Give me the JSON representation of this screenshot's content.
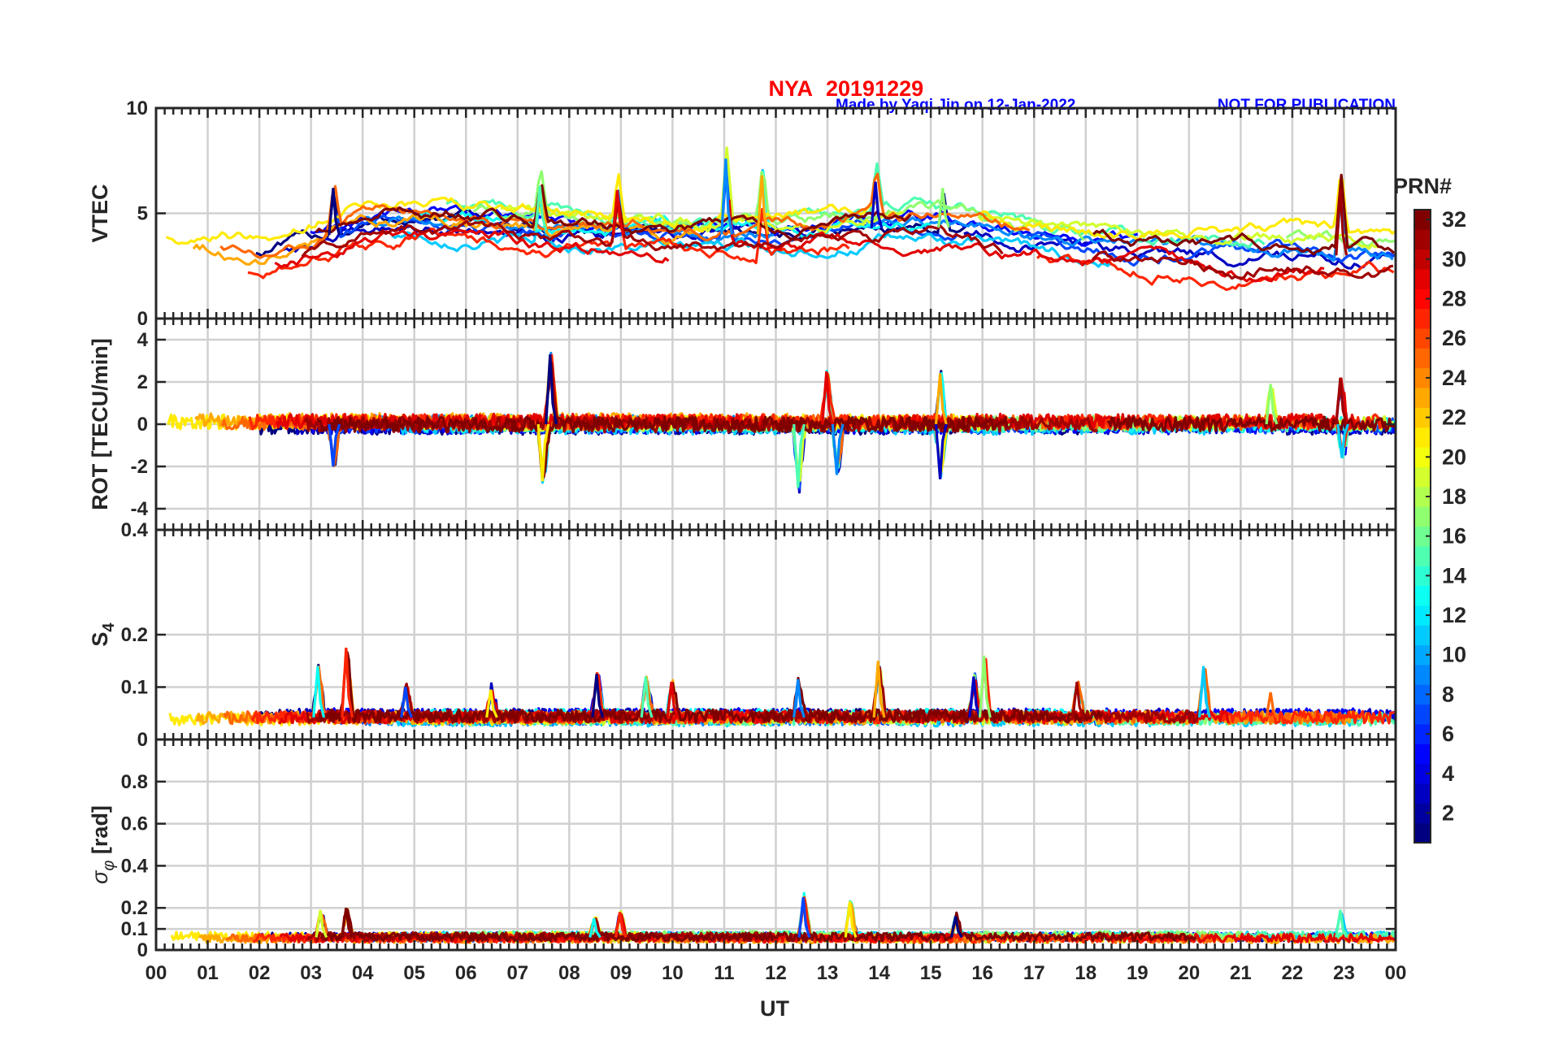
{
  "header": {
    "station": "NYA",
    "date": "20191229",
    "credit": "Made by Yaqi Jin on 12-Jan-2022",
    "notice": "NOT FOR PUBLICATION"
  },
  "chart_data": {
    "type": "line",
    "x_label": "UT",
    "x_ticks": [
      "00",
      "01",
      "02",
      "03",
      "04",
      "05",
      "06",
      "07",
      "08",
      "09",
      "10",
      "11",
      "12",
      "13",
      "14",
      "15",
      "16",
      "17",
      "18",
      "19",
      "20",
      "21",
      "22",
      "23",
      "00"
    ],
    "x_range_hours": [
      0,
      24
    ],
    "grid": true,
    "series_color_variable": "PRN#",
    "colormap": "jet",
    "panels": [
      {
        "name": "vtec",
        "ylabel": "VTEC",
        "ylim": [
          0,
          10
        ],
        "yticks": [
          0,
          5,
          10
        ],
        "ytick_labels": [
          "0",
          "5",
          "10"
        ],
        "envelope": [
          [
            0,
            3.0
          ],
          [
            1,
            3.2
          ],
          [
            2,
            3.0
          ],
          [
            3,
            3.6
          ],
          [
            4,
            4.4
          ],
          [
            5,
            4.7
          ],
          [
            6,
            4.6
          ],
          [
            7,
            4.3
          ],
          [
            8,
            4.1
          ],
          [
            9,
            4.0
          ],
          [
            10,
            3.9
          ],
          [
            11,
            4.0
          ],
          [
            12,
            4.0
          ],
          [
            13,
            4.1
          ],
          [
            14,
            4.3
          ],
          [
            15,
            4.4
          ],
          [
            16,
            4.1
          ],
          [
            17,
            3.7
          ],
          [
            18,
            3.4
          ],
          [
            19,
            3.2
          ],
          [
            20,
            3.1
          ],
          [
            21,
            3.0
          ],
          [
            22,
            3.1
          ],
          [
            23,
            3.0
          ],
          [
            24,
            2.9
          ]
        ],
        "spread": 0.9,
        "peaks": [
          [
            3.45,
            6.2
          ],
          [
            7.45,
            6.3
          ],
          [
            8.95,
            6.1
          ],
          [
            11.05,
            7.6
          ],
          [
            11.75,
            6.8
          ],
          [
            13.95,
            6.5
          ],
          [
            15.25,
            6.2
          ],
          [
            22.95,
            6.2
          ]
        ]
      },
      {
        "name": "rot",
        "ylabel": "ROT [TECU/min]",
        "ylim": [
          -5,
          5
        ],
        "yticks": [
          -4,
          -2,
          0,
          2,
          4
        ],
        "ytick_labels": [
          "-4",
          "-2",
          "0",
          "2",
          "4"
        ],
        "envelope": [
          [
            0,
            0
          ],
          [
            24,
            0
          ]
        ],
        "spread": 0.35,
        "peaks": [
          [
            3.45,
            -2.0
          ],
          [
            7.5,
            -2.7
          ],
          [
            7.65,
            3.3
          ],
          [
            12.45,
            -3.0
          ],
          [
            13.0,
            2.5
          ],
          [
            13.2,
            -2.4
          ],
          [
            15.2,
            2.4
          ],
          [
            15.2,
            -2.6
          ],
          [
            21.6,
            1.9
          ],
          [
            22.95,
            2.2
          ],
          [
            22.98,
            -1.6
          ]
        ]
      },
      {
        "name": "s4",
        "ylabel": "S4",
        "ylim": [
          0,
          0.4
        ],
        "yticks": [
          0,
          0.1,
          0.2,
          0.4
        ],
        "ytick_labels": [
          "0",
          "0.1",
          "0.2",
          "0.4"
        ],
        "envelope": [
          [
            0,
            0.042
          ],
          [
            24,
            0.042
          ]
        ],
        "spread": 0.012,
        "peaks": [
          [
            3.15,
            0.14
          ],
          [
            3.7,
            0.175
          ],
          [
            4.85,
            0.1
          ],
          [
            6.5,
            0.095
          ],
          [
            8.55,
            0.125
          ],
          [
            9.5,
            0.12
          ],
          [
            10.0,
            0.11
          ],
          [
            12.45,
            0.115
          ],
          [
            14.0,
            0.15
          ],
          [
            15.85,
            0.12
          ],
          [
            16.05,
            0.16
          ],
          [
            17.85,
            0.11
          ],
          [
            20.3,
            0.14
          ],
          [
            21.6,
            0.09
          ]
        ]
      },
      {
        "name": "sigma_phi",
        "ylabel": "σφ [rad]",
        "ylim": [
          0,
          1
        ],
        "yticks": [
          0,
          0.1,
          0.2,
          0.4,
          0.6,
          0.8
        ],
        "ytick_labels": [
          "0",
          "0.1",
          "0.2",
          "0.4",
          "0.6",
          "0.8"
        ],
        "envelope": [
          [
            0,
            0.06
          ],
          [
            24,
            0.06
          ]
        ],
        "spread": 0.02,
        "peaks": [
          [
            3.2,
            0.19
          ],
          [
            3.7,
            0.2
          ],
          [
            8.5,
            0.15
          ],
          [
            9.0,
            0.18
          ],
          [
            12.55,
            0.25
          ],
          [
            13.45,
            0.23
          ],
          [
            15.5,
            0.16
          ],
          [
            22.95,
            0.19
          ]
        ]
      }
    ],
    "colorbar": {
      "label": "PRN#",
      "range": [
        1,
        32
      ],
      "ticks": [
        2,
        4,
        6,
        8,
        10,
        12,
        14,
        16,
        18,
        20,
        22,
        24,
        26,
        28,
        30,
        32
      ],
      "tick_labels": [
        "2",
        "4",
        "6",
        "8",
        "10",
        "12",
        "14",
        "16",
        "18",
        "20",
        "22",
        "24",
        "26",
        "28",
        "30",
        "32"
      ]
    },
    "series_prns": [
      1,
      3,
      5,
      7,
      9,
      11,
      13,
      15,
      17,
      19,
      21,
      23,
      25,
      27,
      29,
      31,
      32
    ]
  }
}
